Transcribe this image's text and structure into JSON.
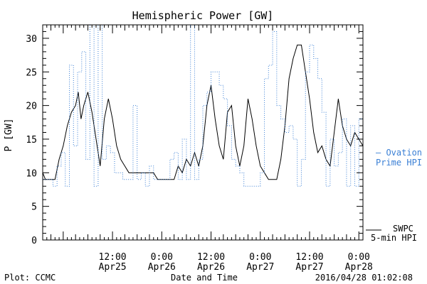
{
  "chart_data": {
    "type": "line",
    "title": "Hemispheric Power [GW]",
    "ylabel": "P [GW]",
    "xlabel": "Date and Time",
    "ylim": [
      0,
      32
    ],
    "xlim": [
      "2016-04-24 19:00",
      "2016-04-28 01:00"
    ],
    "y_ticks": [
      0,
      5,
      10,
      15,
      20,
      25,
      30
    ],
    "x_ticks": [
      {
        "x": "2016-04-25 12:00",
        "time": "12:00",
        "date": "Apr25"
      },
      {
        "x": "2016-04-26 00:00",
        "time": "0:00",
        "date": "Apr26"
      },
      {
        "x": "2016-04-26 12:00",
        "time": "12:00",
        "date": "Apr26"
      },
      {
        "x": "2016-04-27 00:00",
        "time": "0:00",
        "date": "Apr27"
      },
      {
        "x": "2016-04-27 12:00",
        "time": "12:00",
        "date": "Apr27"
      },
      {
        "x": "2016-04-28 00:00",
        "time": "0:00",
        "date": "Apr28"
      }
    ],
    "grid": false,
    "series": [
      {
        "name": "SWPC 5-min HPI",
        "color": "#000000",
        "style": "solid",
        "points": [
          [
            "2016-04-24 19:00",
            10
          ],
          [
            "2016-04-24 19:40",
            9
          ],
          [
            "2016-04-24 22:00",
            9
          ],
          [
            "2016-04-24 23:00",
            12
          ],
          [
            "2016-04-25 00:00",
            14
          ],
          [
            "2016-04-25 01:00",
            17
          ],
          [
            "2016-04-25 02:00",
            19
          ],
          [
            "2016-04-25 03:00",
            20
          ],
          [
            "2016-04-25 03:40",
            22
          ],
          [
            "2016-04-25 04:20",
            18
          ],
          [
            "2016-04-25 05:00",
            20
          ],
          [
            "2016-04-25 06:00",
            22
          ],
          [
            "2016-04-25 07:00",
            19
          ],
          [
            "2016-04-25 08:00",
            15
          ],
          [
            "2016-04-25 09:00",
            11
          ],
          [
            "2016-04-25 10:00",
            18
          ],
          [
            "2016-04-25 11:00",
            21
          ],
          [
            "2016-04-25 12:00",
            18
          ],
          [
            "2016-04-25 13:00",
            14
          ],
          [
            "2016-04-25 14:00",
            12
          ],
          [
            "2016-04-25 15:00",
            11
          ],
          [
            "2016-04-25 16:00",
            10
          ],
          [
            "2016-04-25 22:00",
            10
          ],
          [
            "2016-04-25 23:00",
            9
          ],
          [
            "2016-04-26 03:00",
            9
          ],
          [
            "2016-04-26 04:00",
            11
          ],
          [
            "2016-04-26 05:00",
            10
          ],
          [
            "2016-04-26 06:00",
            12
          ],
          [
            "2016-04-26 07:00",
            11
          ],
          [
            "2016-04-26 08:00",
            13
          ],
          [
            "2016-04-26 09:00",
            11
          ],
          [
            "2016-04-26 10:00",
            14
          ],
          [
            "2016-04-26 11:00",
            20
          ],
          [
            "2016-04-26 12:00",
            23
          ],
          [
            "2016-04-26 13:00",
            18
          ],
          [
            "2016-04-26 14:00",
            14
          ],
          [
            "2016-04-26 15:00",
            12
          ],
          [
            "2016-04-26 16:00",
            19
          ],
          [
            "2016-04-26 17:00",
            20
          ],
          [
            "2016-04-26 18:00",
            14
          ],
          [
            "2016-04-26 19:00",
            11
          ],
          [
            "2016-04-26 20:00",
            14
          ],
          [
            "2016-04-26 21:00",
            21
          ],
          [
            "2016-04-26 22:00",
            18
          ],
          [
            "2016-04-26 23:00",
            14
          ],
          [
            "2016-04-27 00:00",
            11
          ],
          [
            "2016-04-27 01:00",
            10
          ],
          [
            "2016-04-27 02:00",
            9
          ],
          [
            "2016-04-27 04:00",
            9
          ],
          [
            "2016-04-27 05:00",
            12
          ],
          [
            "2016-04-27 06:00",
            17
          ],
          [
            "2016-04-27 07:00",
            24
          ],
          [
            "2016-04-27 08:00",
            27
          ],
          [
            "2016-04-27 09:00",
            29
          ],
          [
            "2016-04-27 10:00",
            29
          ],
          [
            "2016-04-27 11:00",
            25
          ],
          [
            "2016-04-27 12:00",
            21
          ],
          [
            "2016-04-27 13:00",
            16
          ],
          [
            "2016-04-27 14:00",
            13
          ],
          [
            "2016-04-27 15:00",
            14
          ],
          [
            "2016-04-27 16:00",
            12
          ],
          [
            "2016-04-27 17:00",
            11
          ],
          [
            "2016-04-27 18:00",
            16
          ],
          [
            "2016-04-27 19:00",
            21
          ],
          [
            "2016-04-27 20:00",
            17
          ],
          [
            "2016-04-27 21:00",
            15
          ],
          [
            "2016-04-27 22:00",
            14
          ],
          [
            "2016-04-27 23:00",
            16
          ],
          [
            "2016-04-28 00:00",
            15
          ],
          [
            "2016-04-28 01:00",
            14
          ]
        ]
      },
      {
        "name": "Ovation Prime HPI",
        "color": "#3a7fd5",
        "style": "dotted-step",
        "points": [
          [
            "2016-04-24 19:00",
            9
          ],
          [
            "2016-04-24 21:30",
            8
          ],
          [
            "2016-04-24 22:30",
            11
          ],
          [
            "2016-04-24 23:30",
            13
          ],
          [
            "2016-04-25 00:30",
            8
          ],
          [
            "2016-04-25 01:30",
            26
          ],
          [
            "2016-04-25 02:30",
            14
          ],
          [
            "2016-04-25 03:30",
            25
          ],
          [
            "2016-04-25 04:30",
            28
          ],
          [
            "2016-04-25 05:30",
            12
          ],
          [
            "2016-04-25 06:30",
            32
          ],
          [
            "2016-04-25 07:30",
            8
          ],
          [
            "2016-04-25 08:30",
            32
          ],
          [
            "2016-04-25 09:30",
            12
          ],
          [
            "2016-04-25 10:30",
            14
          ],
          [
            "2016-04-25 11:30",
            13
          ],
          [
            "2016-04-25 12:30",
            10
          ],
          [
            "2016-04-25 14:30",
            9
          ],
          [
            "2016-04-25 17:00",
            20
          ],
          [
            "2016-04-25 18:00",
            9
          ],
          [
            "2016-04-25 19:00",
            10
          ],
          [
            "2016-04-25 20:00",
            8
          ],
          [
            "2016-04-25 21:00",
            11
          ],
          [
            "2016-04-25 22:00",
            9
          ],
          [
            "2016-04-26 00:00",
            9
          ],
          [
            "2016-04-26 02:00",
            12
          ],
          [
            "2016-04-26 03:00",
            13
          ],
          [
            "2016-04-26 04:00",
            9
          ],
          [
            "2016-04-26 05:00",
            15
          ],
          [
            "2016-04-26 06:00",
            9
          ],
          [
            "2016-04-26 07:00",
            32
          ],
          [
            "2016-04-26 08:00",
            9
          ],
          [
            "2016-04-26 09:00",
            12
          ],
          [
            "2016-04-26 10:00",
            20
          ],
          [
            "2016-04-26 11:00",
            22
          ],
          [
            "2016-04-26 12:00",
            25
          ],
          [
            "2016-04-26 14:00",
            23
          ],
          [
            "2016-04-26 15:00",
            21
          ],
          [
            "2016-04-26 16:00",
            17
          ],
          [
            "2016-04-26 17:00",
            12
          ],
          [
            "2016-04-26 18:00",
            11
          ],
          [
            "2016-04-26 19:00",
            10
          ],
          [
            "2016-04-26 20:00",
            8
          ],
          [
            "2016-04-26 22:00",
            8
          ],
          [
            "2016-04-27 00:00",
            10
          ],
          [
            "2016-04-27 01:00",
            24
          ],
          [
            "2016-04-27 02:00",
            26
          ],
          [
            "2016-04-27 03:00",
            31
          ],
          [
            "2016-04-27 04:00",
            20
          ],
          [
            "2016-04-27 05:00",
            18
          ],
          [
            "2016-04-27 06:00",
            16
          ],
          [
            "2016-04-27 07:00",
            17
          ],
          [
            "2016-04-27 08:00",
            15
          ],
          [
            "2016-04-27 09:00",
            8
          ],
          [
            "2016-04-27 10:00",
            12
          ],
          [
            "2016-04-27 11:00",
            25
          ],
          [
            "2016-04-27 12:00",
            29
          ],
          [
            "2016-04-27 13:00",
            27
          ],
          [
            "2016-04-27 14:00",
            24
          ],
          [
            "2016-04-27 15:00",
            19
          ],
          [
            "2016-04-27 16:00",
            8
          ],
          [
            "2016-04-27 17:00",
            15
          ],
          [
            "2016-04-27 18:00",
            11
          ],
          [
            "2016-04-27 19:00",
            13
          ],
          [
            "2016-04-27 20:00",
            18
          ],
          [
            "2016-04-27 21:00",
            8
          ],
          [
            "2016-04-27 22:00",
            17
          ],
          [
            "2016-04-27 23:00",
            8
          ],
          [
            "2016-04-28 00:00",
            18
          ],
          [
            "2016-04-28 01:00",
            13
          ]
        ]
      }
    ]
  },
  "legend": {
    "ovation_line1": "— Ovation",
    "ovation_line2": "Prime HPI",
    "swpc_line1": "SWPC",
    "swpc_line2": "5-min HPI"
  },
  "footer": {
    "plot_credit": "Plot: CCMC",
    "x_label": "Date and Time",
    "timestamp": "2016/04/28 01:02:08"
  }
}
